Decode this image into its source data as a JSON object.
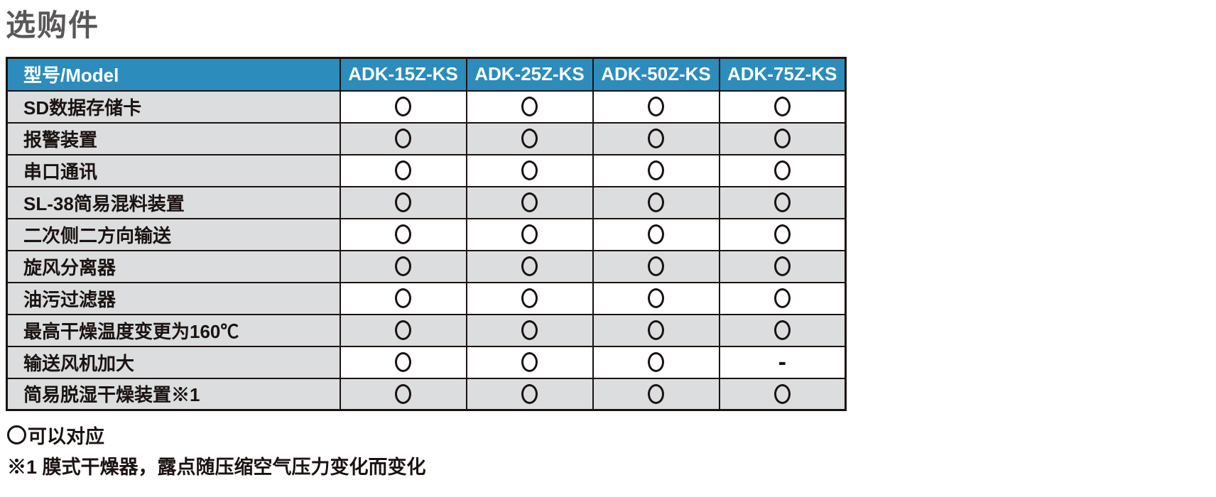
{
  "page": {
    "title": "选购件"
  },
  "colors": {
    "header_bg": "#2c8cbb",
    "header_text": "#ffffff",
    "stripe_gray": "#dcddde",
    "border": "#1a1311",
    "title_text": "#595757",
    "body_text": "#1a1311"
  },
  "icons": {
    "supported": "circle-outline-icon"
  },
  "table": {
    "header": {
      "label": "型号/Model",
      "models": [
        "ADK-15Z-KS",
        "ADK-25Z-KS",
        "ADK-50Z-KS",
        "ADK-75Z-KS"
      ]
    },
    "rows": [
      {
        "label": "SD数据存储卡",
        "values": [
          "○",
          "○",
          "○",
          "○"
        ]
      },
      {
        "label": "报警装置",
        "values": [
          "○",
          "○",
          "○",
          "○"
        ]
      },
      {
        "label": "串口通讯",
        "values": [
          "○",
          "○",
          "○",
          "○"
        ]
      },
      {
        "label": "SL-38简易混料装置",
        "values": [
          "○",
          "○",
          "○",
          "○"
        ]
      },
      {
        "label": "二次侧二方向输送",
        "values": [
          "○",
          "○",
          "○",
          "○"
        ]
      },
      {
        "label": "旋风分离器",
        "values": [
          "○",
          "○",
          "○",
          "○"
        ]
      },
      {
        "label": "油污过滤器",
        "values": [
          "○",
          "○",
          "○",
          "○"
        ]
      },
      {
        "label": "最高干燥温度变更为160℃",
        "values": [
          "○",
          "○",
          "○",
          "○"
        ]
      },
      {
        "label": "输送风机加大",
        "values": [
          "○",
          "○",
          "○",
          "-"
        ]
      },
      {
        "label": "简易脱湿干燥装置※1",
        "values": [
          "○",
          "○",
          "○",
          "○"
        ]
      }
    ]
  },
  "legend": {
    "circle_meaning": "可以对应",
    "note": "※1 膜式干燥器，露点随压缩空气压力变化而变化"
  }
}
